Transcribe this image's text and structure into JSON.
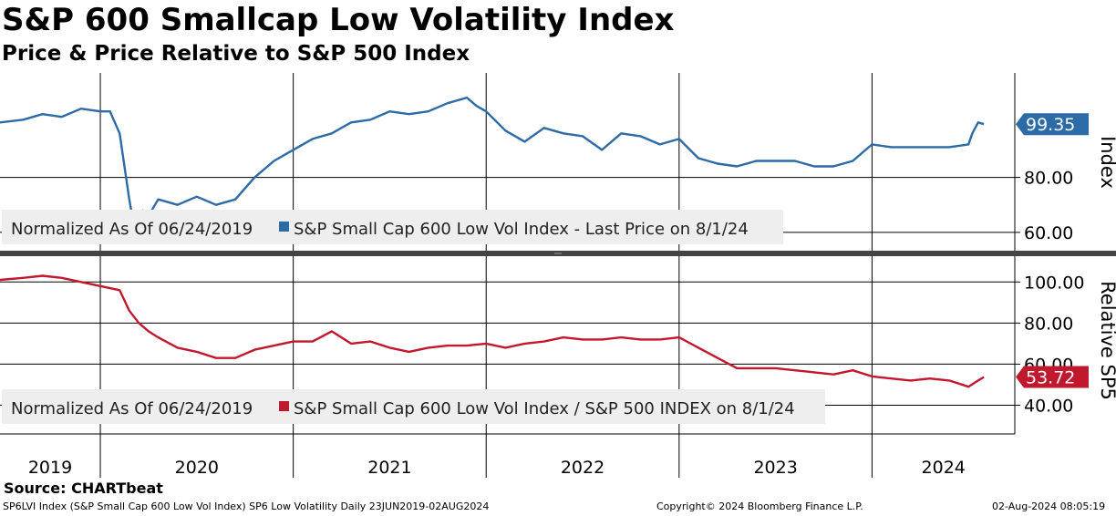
{
  "title": "S&P 600 Smallcap Low Volatility Index",
  "subtitle": "Price & Price Relative to S&P 500 Index",
  "source": "Source: CHARTbeat",
  "footer": {
    "left": "SP6LVI Index (S&P Small Cap 600 Low Vol Index) SP6 Low Volatility  Daily 23JUN2019-02AUG2024",
    "center": "Copyright© 2024 Bloomberg Finance L.P.",
    "right": "02-Aug-2024 08:05:19"
  },
  "colors": {
    "top_series": "#2c6aa8",
    "bottom_series": "#c0182c",
    "grid": "#000000",
    "legend_bg": "#eeeeee"
  },
  "chart_data": [
    {
      "type": "line",
      "axis_title": "Index",
      "ylim": [
        53,
        118
      ],
      "yticks": [
        "60.00",
        "80.00"
      ],
      "ytick_values": [
        60,
        80
      ],
      "x_labels": [
        "2019",
        "2020",
        "2021",
        "2022",
        "2023",
        "2024"
      ],
      "legend": {
        "normalized": "Normalized As Of 06/24/2019",
        "series_label": "S&P Small Cap 600 Low Vol Index - Last Price on 8/1/24"
      },
      "last_value": 99.35,
      "last_label": "99.35",
      "series": [
        {
          "name": "S&P Small Cap 600 Low Vol Index - Last Price on 8/1/24",
          "x": [
            2019.48,
            2019.6,
            2019.7,
            2019.8,
            2019.9,
            2020.0,
            2020.05,
            2020.1,
            2020.15,
            2020.18,
            2020.2,
            2020.22,
            2020.25,
            2020.3,
            2020.4,
            2020.5,
            2020.6,
            2020.7,
            2020.8,
            2020.9,
            2021.0,
            2021.1,
            2021.2,
            2021.3,
            2021.4,
            2021.5,
            2021.6,
            2021.7,
            2021.8,
            2021.9,
            2021.95,
            2022.0,
            2022.1,
            2022.2,
            2022.3,
            2022.4,
            2022.5,
            2022.6,
            2022.7,
            2022.8,
            2022.9,
            2023.0,
            2023.1,
            2023.2,
            2023.3,
            2023.4,
            2023.5,
            2023.6,
            2023.7,
            2023.8,
            2023.9,
            2024.0,
            2024.1,
            2024.2,
            2024.3,
            2024.4,
            2024.5,
            2024.52,
            2024.55,
            2024.58
          ],
          "y": [
            100,
            101,
            103,
            102,
            105,
            104,
            104,
            96,
            72,
            60,
            66,
            68,
            66,
            72,
            70,
            73,
            70,
            72,
            80,
            86,
            90,
            94,
            96,
            100,
            101,
            104,
            103,
            104,
            107,
            109,
            106,
            104,
            97,
            93,
            98,
            96,
            95,
            90,
            96,
            95,
            92,
            94,
            87,
            85,
            84,
            86,
            86,
            86,
            84,
            84,
            86,
            92,
            91,
            91,
            91,
            91,
            92,
            96,
            100,
            99.35
          ]
        }
      ]
    },
    {
      "type": "line",
      "axis_title": "Relative SP5",
      "ylim": [
        30,
        113
      ],
      "yticks": [
        "40.00",
        "60.00",
        "80.00",
        "100.00"
      ],
      "ytick_values": [
        40,
        60,
        80,
        100
      ],
      "x_labels": [
        "2019",
        "2020",
        "2021",
        "2022",
        "2023",
        "2024"
      ],
      "legend": {
        "normalized": "Normalized As Of 06/24/2019",
        "series_label": "S&P Small Cap 600 Low Vol Index / S&P 500 INDEX on 8/1/24"
      },
      "last_value": 53.72,
      "last_label": "53.72",
      "series": [
        {
          "name": "S&P Small Cap 600 Low Vol Index / S&P 500 INDEX on 8/1/24",
          "x": [
            2019.48,
            2019.6,
            2019.7,
            2019.8,
            2019.9,
            2020.0,
            2020.1,
            2020.15,
            2020.2,
            2020.25,
            2020.3,
            2020.4,
            2020.5,
            2020.6,
            2020.7,
            2020.8,
            2020.9,
            2021.0,
            2021.1,
            2021.2,
            2021.3,
            2021.4,
            2021.5,
            2021.6,
            2021.7,
            2021.8,
            2021.9,
            2022.0,
            2022.1,
            2022.2,
            2022.3,
            2022.4,
            2022.5,
            2022.6,
            2022.7,
            2022.8,
            2022.9,
            2023.0,
            2023.1,
            2023.2,
            2023.3,
            2023.4,
            2023.5,
            2023.6,
            2023.7,
            2023.8,
            2023.9,
            2024.0,
            2024.1,
            2024.2,
            2024.3,
            2024.4,
            2024.5,
            2024.55,
            2024.58
          ],
          "y": [
            101,
            102,
            103,
            102,
            100,
            98,
            96,
            86,
            80,
            76,
            73,
            68,
            66,
            63,
            63,
            67,
            69,
            71,
            71,
            76,
            70,
            71,
            68,
            66,
            68,
            69,
            69,
            70,
            68,
            70,
            71,
            73,
            72,
            72,
            73,
            72,
            72,
            73,
            68,
            63,
            58,
            58,
            58,
            57,
            56,
            55,
            57,
            54,
            53,
            52,
            53,
            52,
            49,
            52,
            53.72
          ]
        }
      ]
    }
  ]
}
